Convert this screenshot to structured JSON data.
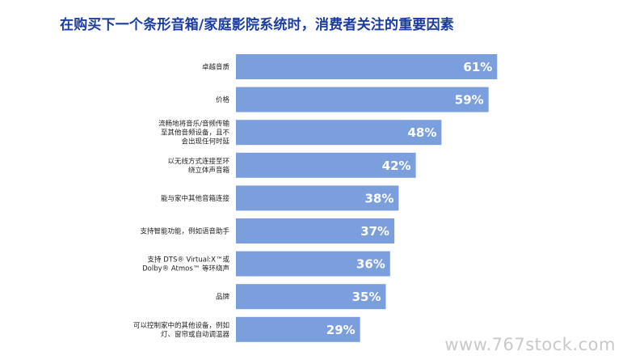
{
  "watermark": "www.767stock.com",
  "chart_data": {
    "type": "bar",
    "orientation": "horizontal",
    "title": "在购买下一个条形音箱/家庭影院系统时，消费者关注的重要因素",
    "xlabel": "",
    "ylabel": "",
    "grid": false,
    "legend": "none",
    "bar_color": "#7b9fdc",
    "categories": [
      [
        "卓越音质"
      ],
      [
        "价格"
      ],
      [
        "流畅地将音乐/音频传输",
        "至其他音频设备，且不",
        "会出现任何时延"
      ],
      [
        "以无线方式连接至环",
        "绕立体声音箱"
      ],
      [
        "能与家中其他音箱连接"
      ],
      [
        "支持智能功能，例如语音助手"
      ],
      [
        "支持 DTS® Virtual:X™或",
        "Dolby® Atmos™ 等环绕声"
      ],
      [
        "品牌"
      ],
      [
        "可以控制家中的其他设备，例如",
        "灯、窗帘或自动调温器"
      ]
    ],
    "values": [
      61,
      59,
      48,
      42,
      38,
      37,
      36,
      35,
      29
    ],
    "value_labels": [
      "61%",
      "59%",
      "48%",
      "42%",
      "38%",
      "37%",
      "36%",
      "35%",
      "29%"
    ],
    "xlim": [
      0,
      100
    ]
  }
}
